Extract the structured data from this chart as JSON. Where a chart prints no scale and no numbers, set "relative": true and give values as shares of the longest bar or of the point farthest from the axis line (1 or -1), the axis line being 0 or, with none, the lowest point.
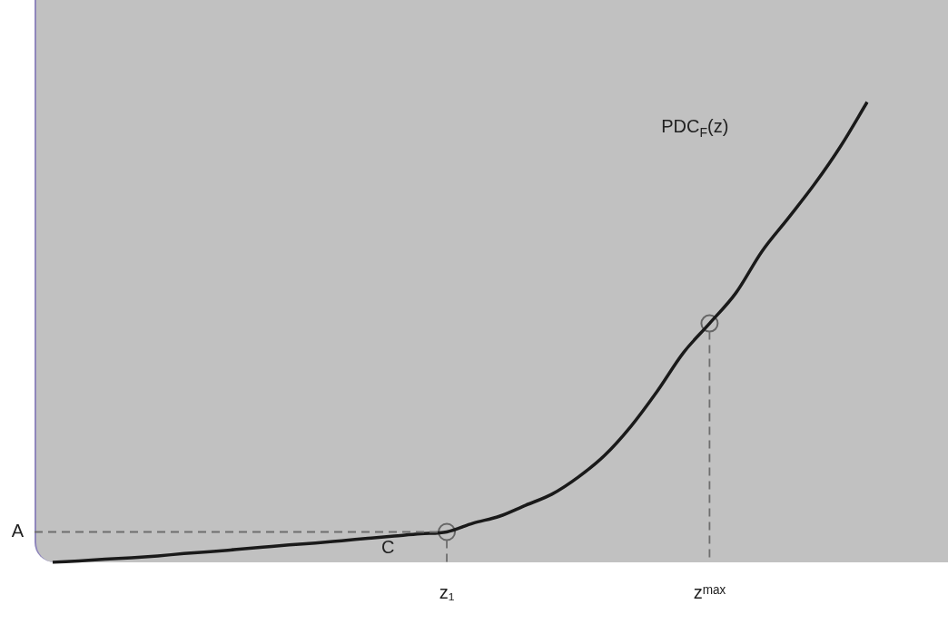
{
  "chart_data": {
    "type": "line",
    "relative": true,
    "categories": [
      null,
      null,
      null,
      null,
      null,
      null,
      null,
      null,
      null,
      null,
      null,
      null,
      null,
      null,
      null,
      "z₁",
      null,
      null,
      null,
      null,
      null,
      null,
      null,
      null,
      null,
      "zᵐᵃˣ",
      null,
      null,
      null,
      null,
      null,
      null
    ],
    "grid": false,
    "legend": false,
    "line_style": "solid",
    "marker": "none",
    "series": [
      {
        "name": "PDC$_{F}$(z)",
        "color": "#1a1a1a",
        "values": [
          0,
          0.003,
          0.007,
          0.01,
          0.014,
          0.019,
          0.023,
          0.028,
          0.033,
          0.038,
          0.042,
          0.047,
          0.052,
          0.057,
          0.062,
          0.066,
          0.085,
          0.1,
          0.124,
          0.148,
          0.185,
          0.232,
          0.295,
          0.371,
          0.455,
          0.519,
          0.585,
          0.676,
          0.748,
          0.822,
          0.905,
          1
        ]
      },
      {
        "type": "scatter",
        "marker": "circle",
        "color": "#666666",
        "x": [
          "z₁",
          "zᵐᵃˣ"
        ],
        "values": [
          0.066,
          0.519
        ]
      }
    ],
    "ref_lines": [
      {
        "axis": "y",
        "value": 0.066,
        "label": "A",
        "color": "#6e6e6e",
        "line_style": "dashed"
      }
    ],
    "annotations": [
      "C"
    ]
  }
}
